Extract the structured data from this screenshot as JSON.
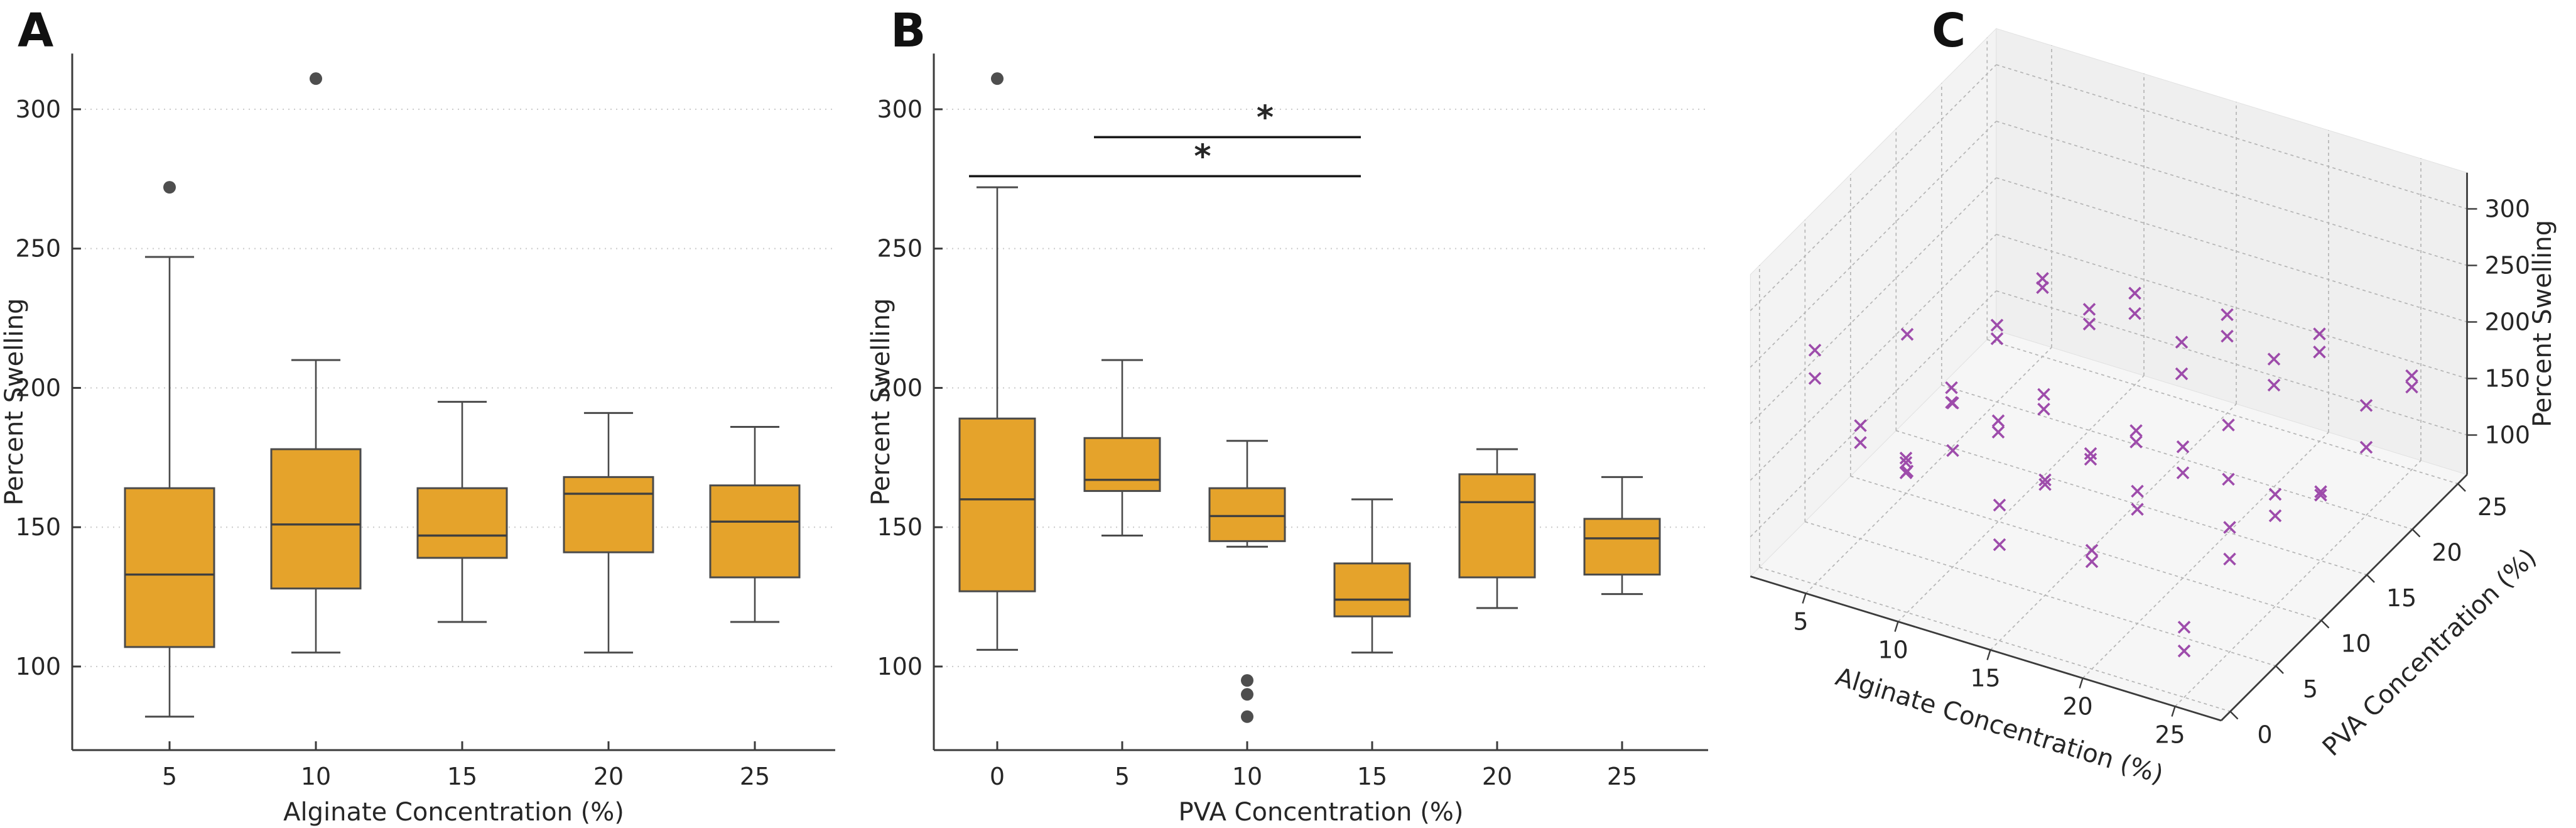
{
  "figure": {
    "background": "#ffffff",
    "panel_letters": {
      "a": "A",
      "b": "B",
      "c": "C"
    }
  },
  "colors": {
    "box_fill": "#E5A32B",
    "box_edge": "#4A4A4A",
    "median": "#3F3F3F",
    "whisker": "#4A4A4A",
    "outlier": "#3F3F3F",
    "grid": "#CDCDCD",
    "spine": "#3B3B3B",
    "grid3d": "#B5B5B5",
    "wall3d": "#F3F3F3",
    "floor3d": "#F6F6F6",
    "scatter_marker": "#8F2F9F",
    "significance": "#1A1A1A"
  },
  "chart_data": [
    {
      "panel": "A",
      "type": "box",
      "xlabel": "Alginate Concentration (%)",
      "ylabel": "Percent Swelling",
      "categories": [
        5,
        10,
        15,
        20,
        25
      ],
      "yticks": [
        100,
        150,
        200,
        250,
        300
      ],
      "ylim": [
        70,
        320
      ],
      "grid": "dotted-horizontal",
      "groups": [
        {
          "category": 5,
          "whisker_low": 82,
          "q1": 107,
          "median": 133,
          "q3": 164,
          "whisker_high": 247,
          "outliers": [
            272
          ]
        },
        {
          "category": 10,
          "whisker_low": 105,
          "q1": 128,
          "median": 151,
          "q3": 178,
          "whisker_high": 210,
          "outliers": [
            311
          ]
        },
        {
          "category": 15,
          "whisker_low": 116,
          "q1": 139,
          "median": 147,
          "q3": 164,
          "whisker_high": 195,
          "outliers": []
        },
        {
          "category": 20,
          "whisker_low": 105,
          "q1": 141,
          "median": 162,
          "q3": 168,
          "whisker_high": 191,
          "outliers": []
        },
        {
          "category": 25,
          "whisker_low": 116,
          "q1": 132,
          "median": 152,
          "q3": 165,
          "whisker_high": 186,
          "outliers": []
        }
      ]
    },
    {
      "panel": "B",
      "type": "box",
      "xlabel": "PVA Concentration (%)",
      "ylabel": "Percent Swelling",
      "categories": [
        0,
        5,
        10,
        15,
        20,
        25
      ],
      "yticks": [
        100,
        150,
        200,
        250,
        300
      ],
      "ylim": [
        70,
        320
      ],
      "grid": "dotted-horizontal",
      "groups": [
        {
          "category": 0,
          "whisker_low": 106,
          "q1": 127,
          "median": 160,
          "q3": 189,
          "whisker_high": 272,
          "outliers": [
            311
          ]
        },
        {
          "category": 5,
          "whisker_low": 147,
          "q1": 163,
          "median": 167,
          "q3": 182,
          "whisker_high": 210,
          "outliers": []
        },
        {
          "category": 10,
          "whisker_low": 143,
          "q1": 145,
          "median": 154,
          "q3": 164,
          "whisker_high": 181,
          "outliers": [
            95,
            90,
            82
          ]
        },
        {
          "category": 15,
          "whisker_low": 105,
          "q1": 118,
          "median": 124,
          "q3": 137,
          "whisker_high": 160,
          "outliers": []
        },
        {
          "category": 20,
          "whisker_low": 121,
          "q1": 132,
          "median": 159,
          "q3": 169,
          "whisker_high": 178,
          "outliers": []
        },
        {
          "category": 25,
          "whisker_low": 126,
          "q1": 133,
          "median": 146,
          "q3": 153,
          "whisker_high": 168,
          "outliers": []
        }
      ],
      "significance_bars": [
        {
          "from_category": 0,
          "to_category": 15,
          "y_value": 276,
          "label": "*"
        },
        {
          "from_category": 5,
          "to_category": 15,
          "y_value": 290,
          "label": "*"
        }
      ]
    },
    {
      "panel": "C",
      "type": "scatter3d",
      "xlabel": "Alginate Concentration (%)",
      "ylabel": "PVA Concentration (%)",
      "zlabel": "Percent Swelling",
      "xticks": [
        5,
        10,
        15,
        20,
        25
      ],
      "yticks": [
        0,
        5,
        10,
        15,
        20,
        25
      ],
      "zticks": [
        100,
        150,
        200,
        250,
        300
      ],
      "marker": "x",
      "note": "point values estimated from pixels",
      "points": [
        [
          5,
          0,
          247
        ],
        [
          5,
          0,
          272
        ],
        [
          5,
          5,
          150
        ],
        [
          5,
          5,
          165
        ],
        [
          5,
          10,
          83
        ],
        [
          5,
          10,
          92
        ],
        [
          5,
          10,
          96
        ],
        [
          5,
          15,
          105
        ],
        [
          5,
          15,
          118
        ],
        [
          5,
          20,
          121
        ],
        [
          5,
          20,
          133
        ],
        [
          5,
          25,
          126
        ],
        [
          5,
          25,
          134
        ],
        [
          10,
          0,
          190
        ],
        [
          10,
          0,
          311
        ],
        [
          10,
          5,
          168
        ],
        [
          10,
          5,
          210
        ],
        [
          10,
          10,
          144
        ],
        [
          10,
          10,
          154
        ],
        [
          10,
          15,
          124
        ],
        [
          10,
          15,
          137
        ],
        [
          10,
          20,
          159
        ],
        [
          10,
          20,
          172
        ],
        [
          10,
          25,
          128
        ],
        [
          10,
          25,
          146
        ],
        [
          15,
          0,
          150
        ],
        [
          15,
          0,
          185
        ],
        [
          15,
          5,
          163
        ],
        [
          15,
          5,
          167
        ],
        [
          15,
          10,
          145
        ],
        [
          15,
          10,
          150
        ],
        [
          15,
          15,
          120
        ],
        [
          15,
          15,
          130
        ],
        [
          15,
          20,
          140
        ],
        [
          15,
          20,
          168
        ],
        [
          15,
          25,
          133
        ],
        [
          15,
          25,
          152
        ],
        [
          20,
          0,
          160
        ],
        [
          20,
          0,
          170
        ],
        [
          20,
          5,
          166
        ],
        [
          20,
          5,
          182
        ],
        [
          20,
          10,
          158
        ],
        [
          20,
          10,
          181
        ],
        [
          20,
          15,
          112
        ],
        [
          20,
          15,
          160
        ],
        [
          20,
          20,
          155
        ],
        [
          20,
          20,
          178
        ],
        [
          20,
          25,
          144
        ],
        [
          20,
          25,
          160
        ],
        [
          25,
          0,
          106
        ],
        [
          25,
          0,
          127
        ],
        [
          25,
          5,
          147
        ],
        [
          25,
          5,
          175
        ],
        [
          25,
          10,
          145
        ],
        [
          25,
          10,
          164
        ],
        [
          25,
          15,
          123
        ],
        [
          25,
          15,
          126
        ],
        [
          25,
          20,
          125
        ],
        [
          25,
          20,
          162
        ],
        [
          25,
          25,
          138
        ],
        [
          25,
          25,
          148
        ]
      ]
    }
  ]
}
